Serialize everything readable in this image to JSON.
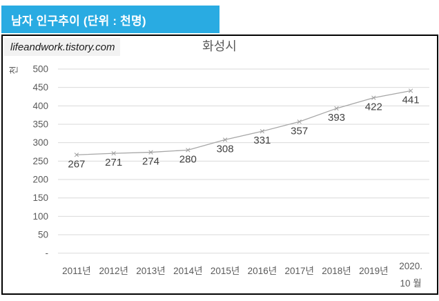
{
  "banner": {
    "title": "남자 인구추이 (단위 : 천명)",
    "bg_color": "#29ABE2",
    "text_color": "#FFFFFF"
  },
  "watermark": {
    "text": "lifeandwork.tistory.com",
    "bg_color": "#F2F2F2"
  },
  "colors": {
    "frame_border": "#000000",
    "gridline": "#D9D9D9",
    "series_line": "#A6A6A6",
    "marker": "#9E9E9E",
    "data_label": "#404040",
    "axis_text": "#595959",
    "title_text": "#595959"
  },
  "chart_data": {
    "type": "line",
    "title": "화성시",
    "y_unit_label": "천",
    "categories": [
      "2011년",
      "2012년",
      "2013년",
      "2014년",
      "2015년",
      "2016년",
      "2017년",
      "2018년",
      "2019년",
      "2020.\n10 월"
    ],
    "values": [
      267,
      271,
      274,
      280,
      308,
      331,
      357,
      393,
      422,
      441
    ],
    "ylim": [
      0,
      500
    ],
    "ytick_step": 50,
    "y_tick_labels": [
      "500",
      "450",
      "400",
      "350",
      "300",
      "250",
      "200",
      "150",
      "100",
      "50",
      "-"
    ],
    "grid": true,
    "legend": "none",
    "data_labels_position": "below"
  }
}
